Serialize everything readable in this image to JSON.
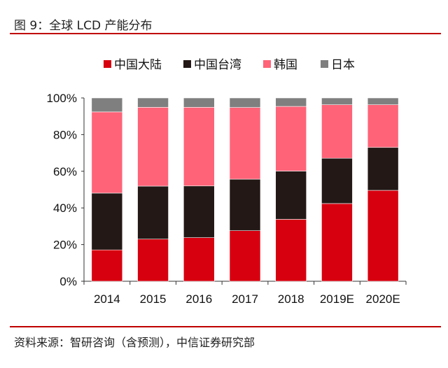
{
  "title": "图 9：全球 LCD 产能分布",
  "source": "资料来源：智研咨询（含预测），中信证券研究部",
  "chart_data": {
    "type": "bar",
    "stacked": true,
    "categories": [
      "2014",
      "2015",
      "2016",
      "2017",
      "2018",
      "2019E",
      "2020E"
    ],
    "series": [
      {
        "name": "中国大陆",
        "color": "#d7000f",
        "values": [
          17.1,
          23.0,
          23.8,
          27.6,
          33.8,
          42.4,
          49.6
        ]
      },
      {
        "name": "中国台湾",
        "color": "#231815",
        "values": [
          31.0,
          28.9,
          28.2,
          28.1,
          26.3,
          24.7,
          23.4
        ]
      },
      {
        "name": "韩国",
        "color": "#ff6378",
        "values": [
          44.3,
          43.0,
          42.9,
          39.1,
          35.3,
          29.2,
          23.3
        ]
      },
      {
        "name": "日本",
        "color": "#7f7f7f",
        "values": [
          7.6,
          5.1,
          5.1,
          5.2,
          4.6,
          3.7,
          3.7
        ]
      }
    ],
    "yticks": [
      "0%",
      "20%",
      "40%",
      "60%",
      "80%",
      "100%"
    ],
    "ylim": [
      0,
      100
    ],
    "legend": "top",
    "grid": false
  }
}
